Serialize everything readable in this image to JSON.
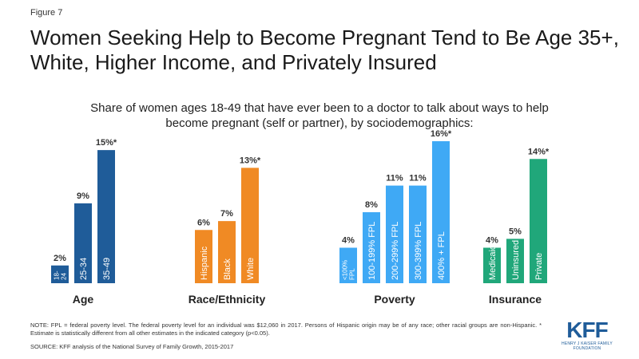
{
  "figure_label": "Figure 7",
  "title": "Women Seeking Help to Become Pregnant Tend to Be Age 35+, White, Higher Income, and Privately Insured",
  "subtitle": "Share of women ages 18-49 that have ever been to a doctor to talk about ways to help become pregnant (self or partner), by sociodemographics:",
  "note": "NOTE: FPL = federal poverty level. The federal poverty level for an individual was $12,060 in 2017. Persons of Hispanic origin may be of any race; other racial groups are non-Hispanic. * Estimate is statistically different from all other estimates in the indicated category (p<0.05).",
  "source": "SOURCE: KFF analysis of the National Survey of Family Growth, 2015-2017",
  "logo": {
    "mark": "KFF",
    "sub": "HENRY J KAISER FAMILY FOUNDATION"
  },
  "chart_data": {
    "type": "bar",
    "ylim": [
      0,
      16
    ],
    "value_suffix": "%",
    "groups": [
      {
        "name": "Age",
        "color": "#1f5c99",
        "bars": [
          {
            "label": "18-\n24",
            "value": 2,
            "display": "2%"
          },
          {
            "label": "25-34",
            "value": 9,
            "display": "9%"
          },
          {
            "label": "35-49",
            "value": 15,
            "display": "15%*"
          }
        ]
      },
      {
        "name": "Race/Ethnicity",
        "color": "#f08a24",
        "bars": [
          {
            "label": "Hispanic",
            "value": 6,
            "display": "6%"
          },
          {
            "label": "Black",
            "value": 7,
            "display": "7%"
          },
          {
            "label": "White",
            "value": 13,
            "display": "13%*"
          }
        ]
      },
      {
        "name": "Poverty",
        "color": "#3fa9f5",
        "bars": [
          {
            "label": "<100%\nFPL",
            "value": 4,
            "display": "4%"
          },
          {
            "label": "100-199% FPL",
            "value": 8,
            "display": "8%"
          },
          {
            "label": "200-299% FPL",
            "value": 11,
            "display": "11%"
          },
          {
            "label": "300-399% FPL",
            "value": 11,
            "display": "11%"
          },
          {
            "label": "400% + FPL",
            "value": 16,
            "display": "16%*"
          }
        ]
      },
      {
        "name": "Insurance",
        "color": "#20a77a",
        "bars": [
          {
            "label": "Medicaid",
            "value": 4,
            "display": "4%"
          },
          {
            "label": "Uninsured",
            "value": 5,
            "display": "5%"
          },
          {
            "label": "Private",
            "value": 14,
            "display": "14%*"
          }
        ]
      }
    ]
  }
}
